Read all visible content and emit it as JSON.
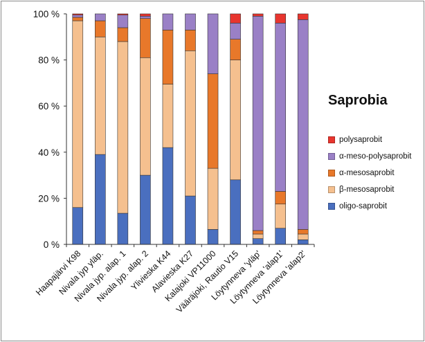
{
  "chart_data": {
    "type": "bar",
    "stacked": true,
    "percent": true,
    "title": "Saprobia",
    "xlabel": "",
    "ylabel": "",
    "ylim": [
      0,
      100
    ],
    "yticks": [
      0,
      20,
      40,
      60,
      80,
      100
    ],
    "ytick_labels": [
      "0 %",
      "20 %",
      "40 %",
      "60 %",
      "80 %",
      "100 %"
    ],
    "grid": false,
    "legend_position": "right",
    "categories": [
      "Haapajärvi K98",
      "Nivala jyp yläp.",
      "Nivala jyp. alap. 1",
      "Nivala jyp. alap. 2",
      "Ylivieska K44",
      "Alavieska K27",
      "Kalajoki VP11000",
      "Vääräjoki, Rautio V15",
      "Löytynneva 'yläp'",
      "Löytynneva 'alap1'",
      "Löytynneva 'alap2'"
    ],
    "series": [
      {
        "name": "oligo-saprobit",
        "color": "#4a6fbf",
        "values": [
          16,
          39,
          13.5,
          30,
          42,
          21,
          6.5,
          28,
          2.5,
          7,
          2
        ]
      },
      {
        "name": "β-mesosaprobit",
        "color": "#f5c08f",
        "values": [
          81,
          51,
          74.5,
          51,
          27.5,
          63,
          26.5,
          52,
          2,
          10.5,
          2.5
        ]
      },
      {
        "name": "α-mesosaprobit",
        "color": "#e8782a",
        "values": [
          1.5,
          7,
          6,
          17,
          23.5,
          9,
          41,
          9,
          1.5,
          5.5,
          2
        ]
      },
      {
        "name": "α-meso-polysaprobit",
        "color": "#9a80c6",
        "values": [
          1,
          3,
          5.5,
          1,
          7,
          7,
          26,
          7,
          93,
          73,
          91
        ]
      },
      {
        "name": "polysaprobit",
        "color": "#e8352e",
        "values": [
          0.5,
          0,
          0.5,
          1,
          0,
          0,
          0,
          4,
          1,
          4,
          2.5
        ]
      }
    ]
  }
}
